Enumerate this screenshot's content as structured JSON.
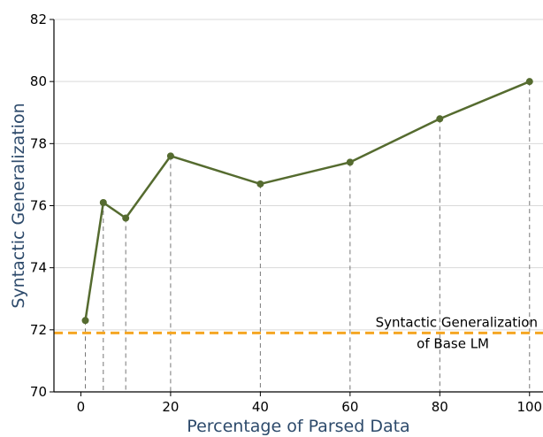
{
  "chart_data": {
    "type": "line",
    "xlabel": "Percentage of Parsed Data",
    "ylabel": "Syntactic Generalization",
    "xlim": [
      -6,
      103
    ],
    "ylim": [
      70,
      82
    ],
    "xticks": [
      0,
      20,
      40,
      60,
      80,
      100
    ],
    "yticks": [
      70,
      72,
      74,
      76,
      78,
      80,
      82
    ],
    "grid": "horizontal",
    "series": [
      {
        "x": [
          1,
          5,
          10,
          20,
          40,
          60,
          80,
          100
        ],
        "y": [
          72.3,
          76.1,
          75.6,
          77.6,
          76.7,
          77.4,
          78.8,
          80.0
        ],
        "color": "#556b2f",
        "marker": "circle",
        "dropline": "dashed-gray"
      }
    ],
    "reference_line": {
      "y": 71.9,
      "color": "#f5a623",
      "style": "dashed",
      "label_line1": "Syntactic Generalization",
      "label_line2": "of Base LM"
    }
  }
}
